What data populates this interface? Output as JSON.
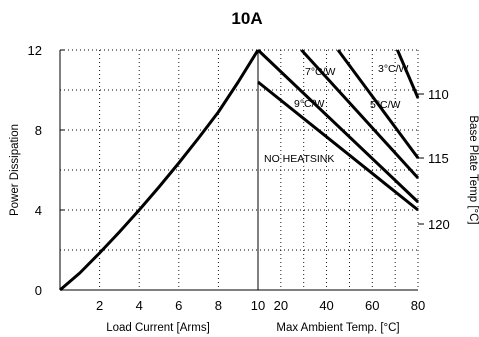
{
  "chart_data": {
    "type": "line",
    "title": "10A",
    "ylabel": "Power Dissipation",
    "ylim": [
      0,
      12
    ],
    "yticks": [
      "0",
      "4",
      "8",
      "12"
    ],
    "grid": true,
    "left_panel": {
      "xlabel": "Load Current  [Arms]",
      "xlim": [
        0,
        10
      ],
      "xticks": [
        "2",
        "4",
        "6",
        "8",
        "10"
      ],
      "series": [
        {
          "x": [
            0,
            1,
            2,
            3,
            4,
            5,
            6,
            7,
            8,
            9,
            10
          ],
          "y": [
            0,
            0.85,
            1.85,
            2.9,
            4.0,
            5.15,
            6.35,
            7.6,
            8.9,
            10.4,
            12.0
          ]
        }
      ]
    },
    "right_panel": {
      "xlabel": "Max Ambient Temp. [°C]",
      "xlim": [
        10,
        80
      ],
      "xticks": [
        "20",
        "40",
        "60",
        "80"
      ],
      "y2label": "Base Plate Temp [°C]",
      "y2ticks": [
        {
          "label": "110",
          "y": 9.8
        },
        {
          "label": "115",
          "y": 6.6
        },
        {
          "label": "120",
          "y": 3.3
        }
      ],
      "series": [
        {
          "name": "3°C/W",
          "x": [
            80,
            71
          ],
          "y": [
            9.6,
            12.0
          ]
        },
        {
          "name": "5°C/W",
          "x": [
            80,
            45
          ],
          "y": [
            6.6,
            12.0
          ]
        },
        {
          "name": "7°C/W",
          "x": [
            80,
            29
          ],
          "y": [
            5.6,
            12.0
          ]
        },
        {
          "name": "9°C/W",
          "x": [
            10,
            80
          ],
          "y": [
            12.0,
            4.4
          ]
        },
        {
          "name": "NO HEATSINK",
          "x": [
            10,
            80
          ],
          "y": [
            10.4,
            4.0
          ]
        }
      ]
    }
  }
}
